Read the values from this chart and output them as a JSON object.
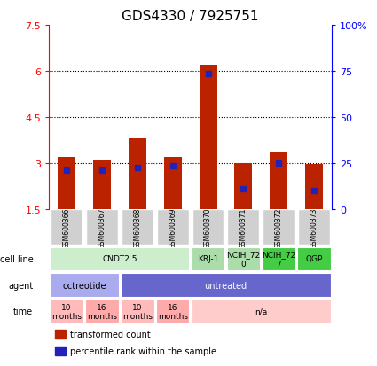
{
  "title": "GDS4330 / 7925751",
  "samples": [
    "GSM600366",
    "GSM600367",
    "GSM600368",
    "GSM600369",
    "GSM600370",
    "GSM600371",
    "GSM600372",
    "GSM600373"
  ],
  "bar_bottoms": [
    1.5,
    1.5,
    1.5,
    1.5,
    1.5,
    1.5,
    1.5,
    1.5
  ],
  "bar_heights": [
    3.2,
    3.1,
    3.8,
    3.2,
    6.2,
    3.0,
    3.35,
    2.95
  ],
  "bar_color": "#bb2200",
  "blue_marker_values": [
    2.75,
    2.75,
    2.85,
    2.9,
    5.9,
    2.15,
    3.0,
    2.1
  ],
  "blue_color": "#2222bb",
  "ylim_left": [
    1.5,
    7.5
  ],
  "ylim_right": [
    0,
    100
  ],
  "yticks_left": [
    1.5,
    3.0,
    4.5,
    6.0,
    7.5
  ],
  "ytick_labels_left": [
    "1.5",
    "3",
    "4.5",
    "6",
    "7.5"
  ],
  "yticks_right": [
    0,
    25,
    50,
    75,
    100
  ],
  "ytick_labels_right": [
    "0",
    "25",
    "50",
    "75",
    "100%"
  ],
  "grid_values": [
    3.0,
    4.5,
    6.0
  ],
  "cell_line_groups": [
    {
      "label": "CNDT2.5",
      "start": 0,
      "end": 4,
      "color": "#cceecc"
    },
    {
      "label": "KRJ-1",
      "start": 4,
      "end": 5,
      "color": "#aaddaa"
    },
    {
      "label": "NCIH_72\n0",
      "start": 5,
      "end": 6,
      "color": "#aaddaa"
    },
    {
      "label": "NCIH_72\n7",
      "start": 6,
      "end": 7,
      "color": "#44cc44"
    },
    {
      "label": "QGP",
      "start": 7,
      "end": 8,
      "color": "#44cc44"
    }
  ],
  "agent_groups": [
    {
      "label": "octreotide",
      "start": 0,
      "end": 2,
      "color": "#aaaaee"
    },
    {
      "label": "untreated",
      "start": 2,
      "end": 8,
      "color": "#6666cc"
    }
  ],
  "time_groups": [
    {
      "label": "10\nmonths",
      "start": 0,
      "end": 1,
      "color": "#ffbbbb"
    },
    {
      "label": "16\nmonths",
      "start": 1,
      "end": 2,
      "color": "#ffaaaa"
    },
    {
      "label": "10\nmonths",
      "start": 2,
      "end": 3,
      "color": "#ffbbbb"
    },
    {
      "label": "16\nmonths",
      "start": 3,
      "end": 4,
      "color": "#ffaaaa"
    },
    {
      "label": "n/a",
      "start": 4,
      "end": 8,
      "color": "#ffcccc"
    }
  ],
  "row_labels": [
    "cell line",
    "agent",
    "time"
  ],
  "legend_items": [
    {
      "label": "transformed count",
      "color": "#bb2200"
    },
    {
      "label": "percentile rank within the sample",
      "color": "#2222bb"
    }
  ],
  "bar_width": 0.5
}
